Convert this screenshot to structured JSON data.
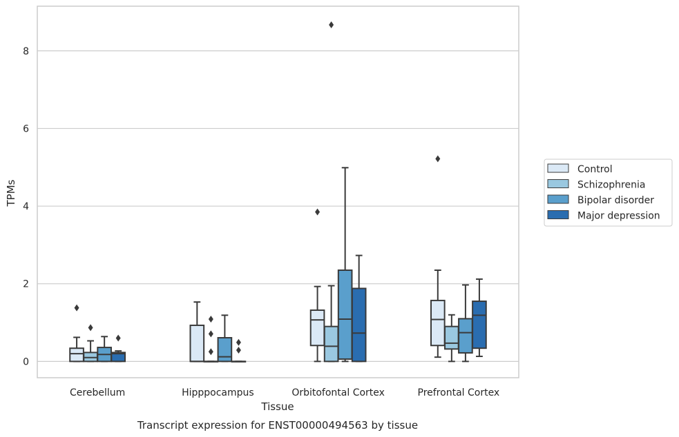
{
  "chart_data": {
    "type": "boxplot",
    "xlabel": "Tissue",
    "ylabel": "TPMs",
    "caption": "Transcript expression for ENST00000494563 by tissue",
    "ylim": [
      -0.42,
      9.15
    ],
    "yticks": [
      0,
      2,
      4,
      6,
      8
    ],
    "grid": "horizontal",
    "legend_position": "right",
    "categories": [
      "Cerebellum",
      "Hipppocampus",
      "Orbitofontal Cortex",
      "Prefrontal Cortex"
    ],
    "series": [
      {
        "name": "Control",
        "color": "#dbe9f6",
        "boxes": [
          {
            "whislo": 0,
            "q1": 0,
            "med": 0.2,
            "q3": 0.34,
            "whishi": 0.62,
            "fliers": [
              1.38
            ]
          },
          {
            "whislo": 0,
            "q1": 0,
            "med": 0,
            "q3": 0.93,
            "whishi": 1.53,
            "fliers": []
          },
          {
            "whislo": 0,
            "q1": 0.41,
            "med": 1.07,
            "q3": 1.32,
            "whishi": 1.93,
            "fliers": [
              3.85
            ]
          },
          {
            "whislo": 0.11,
            "q1": 0.41,
            "med": 1.08,
            "q3": 1.57,
            "whishi": 2.35,
            "fliers": [
              5.22
            ]
          }
        ]
      },
      {
        "name": "Schizophrenia",
        "color": "#9ac8e0",
        "boxes": [
          {
            "whislo": 0,
            "q1": 0,
            "med": 0.1,
            "q3": 0.23,
            "whishi": 0.53,
            "fliers": [
              0.87
            ]
          },
          {
            "whislo": 0,
            "q1": 0,
            "med": 0,
            "q3": 0,
            "whishi": 0,
            "fliers": [
              1.09,
              0.71,
              0.25
            ]
          },
          {
            "whislo": 0,
            "q1": 0,
            "med": 0.39,
            "q3": 0.9,
            "whishi": 1.95,
            "fliers": [
              8.67
            ]
          },
          {
            "whislo": 0,
            "q1": 0.32,
            "med": 0.47,
            "q3": 0.9,
            "whishi": 1.2,
            "fliers": []
          }
        ]
      },
      {
        "name": "Bipolar disorder",
        "color": "#5a9fcc",
        "boxes": [
          {
            "whislo": 0,
            "q1": 0,
            "med": 0.18,
            "q3": 0.36,
            "whishi": 0.64,
            "fliers": []
          },
          {
            "whislo": 0,
            "q1": 0,
            "med": 0.12,
            "q3": 0.61,
            "whishi": 1.19,
            "fliers": []
          },
          {
            "whislo": 0,
            "q1": 0.06,
            "med": 1.09,
            "q3": 2.35,
            "whishi": 4.99,
            "fliers": []
          },
          {
            "whislo": 0,
            "q1": 0.22,
            "med": 0.74,
            "q3": 1.1,
            "whishi": 1.97,
            "fliers": []
          }
        ]
      },
      {
        "name": "Major depression",
        "color": "#2a6db0",
        "boxes": [
          {
            "whislo": 0,
            "q1": 0,
            "med": 0.2,
            "q3": 0.23,
            "whishi": 0.27,
            "fliers": [
              0.6
            ]
          },
          {
            "whislo": 0,
            "q1": 0,
            "med": 0,
            "q3": 0,
            "whishi": 0,
            "fliers": [
              0.49,
              0.29
            ]
          },
          {
            "whislo": 0,
            "q1": 0,
            "med": 0.73,
            "q3": 1.88,
            "whishi": 2.73,
            "fliers": []
          },
          {
            "whislo": 0.13,
            "q1": 0.34,
            "med": 1.19,
            "q3": 1.55,
            "whishi": 2.12,
            "fliers": []
          }
        ]
      }
    ]
  }
}
